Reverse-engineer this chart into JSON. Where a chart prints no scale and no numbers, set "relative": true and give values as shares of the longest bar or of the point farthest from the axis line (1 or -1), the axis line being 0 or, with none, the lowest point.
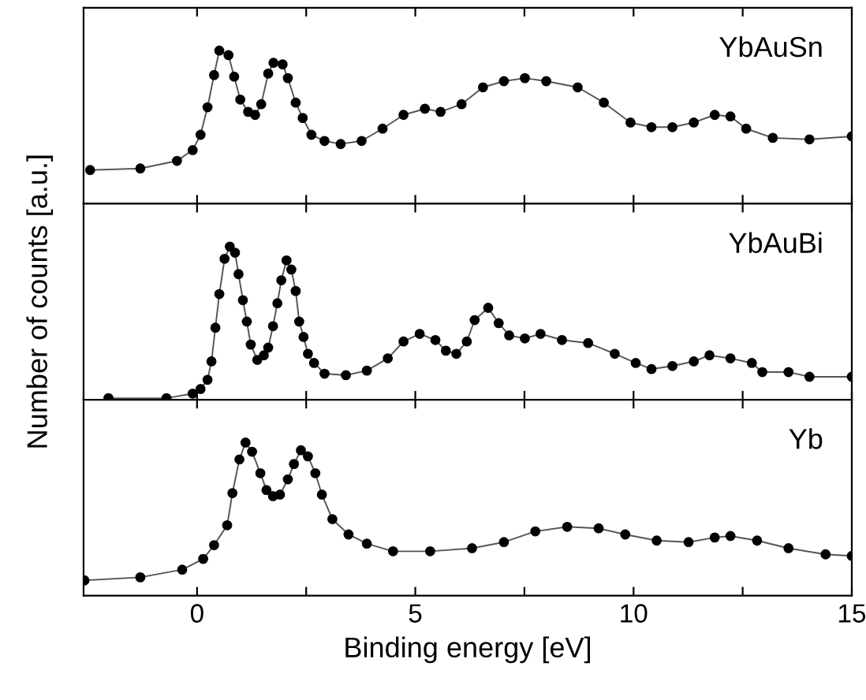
{
  "chart_data": [
    {
      "type": "line",
      "relative": true,
      "xlim": [
        -2.6,
        15
      ],
      "xticks": [
        {
          "value": 0,
          "label": null
        },
        {
          "value": 2.5,
          "label": null
        },
        {
          "value": 5,
          "label": null
        },
        {
          "value": 7.5,
          "label": null
        },
        {
          "value": 10,
          "label": null
        },
        {
          "value": 12.5,
          "label": null
        },
        {
          "value": 15,
          "label": null
        }
      ],
      "tick_labels": false,
      "marker": "circle",
      "line_style": "solid",
      "grid": false,
      "legend": "top right",
      "series": [
        {
          "name": "YbAuSn",
          "color": "#000000",
          "x": [
            -2.45,
            -1.3,
            -0.46,
            -0.1,
            0.08,
            0.24,
            0.39,
            0.51,
            0.72,
            0.85,
            0.99,
            1.17,
            1.33,
            1.47,
            1.63,
            1.75,
            1.96,
            2.08,
            2.26,
            2.42,
            2.62,
            2.92,
            3.29,
            3.77,
            4.25,
            4.73,
            5.22,
            5.58,
            6.06,
            6.55,
            7.03,
            7.51,
            8.0,
            8.72,
            9.32,
            9.93,
            10.41,
            10.89,
            11.38,
            11.86,
            12.22,
            12.58,
            13.19,
            14.03,
            15.0
          ],
          "values": [
            0.22,
            0.23,
            0.28,
            0.35,
            0.45,
            0.63,
            0.84,
            1.0,
            0.97,
            0.83,
            0.68,
            0.6,
            0.58,
            0.65,
            0.85,
            0.92,
            0.91,
            0.82,
            0.66,
            0.56,
            0.45,
            0.41,
            0.39,
            0.41,
            0.49,
            0.58,
            0.62,
            0.6,
            0.65,
            0.76,
            0.8,
            0.82,
            0.8,
            0.76,
            0.66,
            0.53,
            0.5,
            0.5,
            0.53,
            0.58,
            0.57,
            0.49,
            0.43,
            0.42,
            0.44
          ]
        }
      ]
    },
    {
      "type": "line",
      "relative": true,
      "xlim": [
        -2.6,
        15
      ],
      "xticks": [
        {
          "value": 0,
          "label": null
        },
        {
          "value": 2.5,
          "label": null
        },
        {
          "value": 5,
          "label": null
        },
        {
          "value": 7.5,
          "label": null
        },
        {
          "value": 10,
          "label": null
        },
        {
          "value": 12.5,
          "label": null
        },
        {
          "value": 15,
          "label": null
        }
      ],
      "tick_labels": false,
      "marker": "circle",
      "line_style": "solid",
      "grid": false,
      "legend": "top right",
      "ylabel": "Number of counts [a.u.]",
      "series": [
        {
          "name": "YbAuBi",
          "color": "#000000",
          "x": [
            -2.03,
            -0.7,
            -0.1,
            0.08,
            0.24,
            0.33,
            0.42,
            0.51,
            0.63,
            0.75,
            0.87,
            0.95,
            1.05,
            1.14,
            1.23,
            1.38,
            1.53,
            1.63,
            1.74,
            1.84,
            1.93,
            2.05,
            2.16,
            2.26,
            2.34,
            2.44,
            2.54,
            2.68,
            2.92,
            3.41,
            3.89,
            4.37,
            4.73,
            5.1,
            5.46,
            5.7,
            5.94,
            6.18,
            6.36,
            6.67,
            6.91,
            7.15,
            7.51,
            7.87,
            8.36,
            8.96,
            9.57,
            10.05,
            10.41,
            10.89,
            11.38,
            11.74,
            12.22,
            12.71,
            12.95,
            13.55,
            14.03,
            15.0
          ],
          "values": [
            0.01,
            0.01,
            0.04,
            0.07,
            0.13,
            0.25,
            0.47,
            0.69,
            0.92,
            1.0,
            0.96,
            0.82,
            0.65,
            0.51,
            0.36,
            0.26,
            0.29,
            0.34,
            0.48,
            0.63,
            0.78,
            0.91,
            0.85,
            0.71,
            0.51,
            0.41,
            0.3,
            0.24,
            0.17,
            0.16,
            0.19,
            0.27,
            0.38,
            0.43,
            0.39,
            0.32,
            0.3,
            0.38,
            0.52,
            0.6,
            0.5,
            0.42,
            0.4,
            0.43,
            0.39,
            0.37,
            0.3,
            0.24,
            0.2,
            0.22,
            0.25,
            0.29,
            0.27,
            0.24,
            0.18,
            0.18,
            0.15,
            0.15
          ]
        }
      ]
    },
    {
      "type": "line",
      "relative": true,
      "xlim": [
        -2.6,
        15
      ],
      "xticks": [
        0,
        {
          "value": 2.5,
          "label": null
        },
        5,
        {
          "value": 7.5,
          "label": null
        },
        10,
        {
          "value": 12.5,
          "label": null
        },
        15
      ],
      "tick_labels": "x",
      "marker": "circle",
      "line_style": "solid",
      "grid": false,
      "legend": "top right",
      "xlabel": "Binding energy [eV]",
      "series": [
        {
          "name": "Yb",
          "color": "#000000",
          "x": [
            -2.58,
            -1.3,
            -0.34,
            0.14,
            0.39,
            0.69,
            0.81,
            0.97,
            1.11,
            1.26,
            1.45,
            1.59,
            1.74,
            1.9,
            2.08,
            2.22,
            2.38,
            2.54,
            2.71,
            2.86,
            3.1,
            3.47,
            3.89,
            4.49,
            5.34,
            6.3,
            7.03,
            7.75,
            8.48,
            9.2,
            9.81,
            10.53,
            11.26,
            11.86,
            12.22,
            12.83,
            13.55,
            14.4,
            15.0
          ],
          "values": [
            0.1,
            0.12,
            0.17,
            0.24,
            0.33,
            0.46,
            0.67,
            0.89,
            1.0,
            0.94,
            0.8,
            0.69,
            0.65,
            0.66,
            0.76,
            0.86,
            0.95,
            0.91,
            0.8,
            0.66,
            0.5,
            0.4,
            0.34,
            0.29,
            0.29,
            0.31,
            0.35,
            0.42,
            0.45,
            0.44,
            0.4,
            0.36,
            0.35,
            0.38,
            0.39,
            0.36,
            0.31,
            0.27,
            0.26
          ]
        }
      ]
    }
  ]
}
